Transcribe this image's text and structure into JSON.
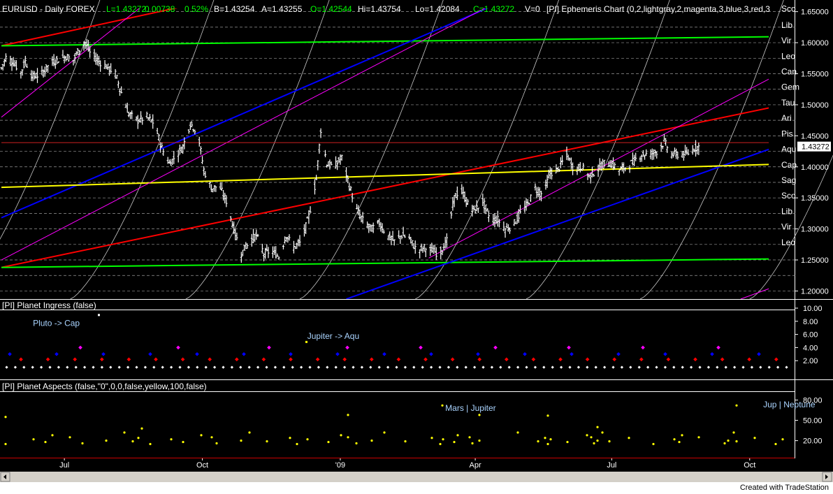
{
  "header": {
    "symbol": "EURUSD - Daily  FOREX",
    "last": "L=1.43272",
    "change": "0.00738",
    "change_pct": "0.52%",
    "bid": "B=1.43254",
    "ask": "A=1.43255",
    "open": "O=1.42544",
    "high": "Hi=1.43754",
    "low": "Lo=1.42084",
    "close": "C=1.43272",
    "volume": "V=0",
    "indicator": "[PI] Ephemeris Chart (0,2,lightgray,2,magenta,3,blue,3,red,3"
  },
  "price_panel": {
    "last_price_label": "1.43272",
    "y_ticks": [
      "1.65000",
      "1.60000",
      "1.55000",
      "1.50000",
      "1.45000",
      "1.40000",
      "1.35000",
      "1.30000",
      "1.25000",
      "1.20000"
    ],
    "zodiac_labels": [
      {
        "text": "Sco",
        "price": 1.656
      },
      {
        "text": "Lib",
        "price": 1.6295
      },
      {
        "text": "Vir",
        "price": 1.6045
      },
      {
        "text": "Leo",
        "price": 1.5795
      },
      {
        "text": "Can",
        "price": 1.5545
      },
      {
        "text": "Gem",
        "price": 1.5295
      },
      {
        "text": "Tau",
        "price": 1.5045
      },
      {
        "text": "Ari",
        "price": 1.4795
      },
      {
        "text": "Pis",
        "price": 1.4545
      },
      {
        "text": "Aqu",
        "price": 1.4295
      },
      {
        "text": "Cap",
        "price": 1.4045
      },
      {
        "text": "Sag",
        "price": 1.3795
      },
      {
        "text": "Sco",
        "price": 1.3545
      },
      {
        "text": "Lib",
        "price": 1.3295
      },
      {
        "text": "Vir",
        "price": 1.3045
      },
      {
        "text": "Leo",
        "price": 1.2795
      }
    ]
  },
  "ingress_panel": {
    "title": "[PI] Planet Ingress (false)",
    "y_ticks": [
      "10.00",
      "8.00",
      "6.00",
      "4.00",
      "2.00"
    ],
    "annotations": [
      {
        "text": "Pluto  -> Cap",
        "x_date": "2008-06-10",
        "level": 7.3
      },
      {
        "text": "Jupiter -> Aqu",
        "x_date": "2008-12-10",
        "level": 5.3
      }
    ]
  },
  "aspects_panel": {
    "title": "[PI] Planet Aspects (false,\"0\",0,0,false,yellow,100,false)",
    "y_ticks": [
      "80.00",
      "50.00",
      "20.00"
    ],
    "annotations": [
      {
        "text": "Mars | Jupiter",
        "x_date": "2009-03-12",
        "level": 64
      },
      {
        "text": "Jup | Neptune",
        "x_date": "2009-10-10",
        "level": 69
      }
    ]
  },
  "x_axis": {
    "labels": [
      {
        "text": "Jul",
        "date": "2008-07-01"
      },
      {
        "text": "Oct",
        "date": "2008-10-01"
      },
      {
        "text": "'09",
        "date": "2009-01-01"
      },
      {
        "text": "Apr",
        "date": "2009-04-01"
      },
      {
        "text": "Jul",
        "date": "2009-07-01"
      },
      {
        "text": "Oct",
        "date": "2009-10-01"
      }
    ]
  },
  "footer": {
    "credit": "Created with TradeStation"
  },
  "colors": {
    "background": "#000000",
    "bars": "#ffffff",
    "up_text": "#00ff00",
    "axis_text": "#ffffff",
    "ingress_red": "#ff0000",
    "ingress_blue": "#0000ff",
    "ingress_magenta": "#ff00ff",
    "ingress_white": "#ffffff",
    "aspect_dots": "#ffff00",
    "annotation_text": "#aad4ff"
  },
  "chart_data": {
    "type": "bar",
    "subtype": "ohlc",
    "title": "EURUSD - Daily  FOREX",
    "x_range": [
      "2008-05-20",
      "2009-10-30"
    ],
    "y_range": [
      1.187,
      1.662
    ],
    "grid": true,
    "series": [
      {
        "name": "price",
        "points": [
          [
            "2008-05-20",
            1.559
          ],
          [
            "2008-05-23",
            1.576
          ],
          [
            "2008-05-28",
            1.568
          ],
          [
            "2008-06-02",
            1.552
          ],
          [
            "2008-06-05",
            1.57
          ],
          [
            "2008-06-10",
            1.545
          ],
          [
            "2008-06-16",
            1.55
          ],
          [
            "2008-06-21",
            1.565
          ],
          [
            "2008-06-26",
            1.572
          ],
          [
            "2008-07-02",
            1.578
          ],
          [
            "2008-07-07",
            1.572
          ],
          [
            "2008-07-11",
            1.59
          ],
          [
            "2008-07-15",
            1.6
          ],
          [
            "2008-07-18",
            1.585
          ],
          [
            "2008-07-24",
            1.57
          ],
          [
            "2008-07-30",
            1.56
          ],
          [
            "2008-08-04",
            1.55
          ],
          [
            "2008-08-08",
            1.52
          ],
          [
            "2008-08-13",
            1.485
          ],
          [
            "2008-08-19",
            1.475
          ],
          [
            "2008-08-25",
            1.48
          ],
          [
            "2008-08-30",
            1.47
          ],
          [
            "2008-09-04",
            1.43
          ],
          [
            "2008-09-09",
            1.405
          ],
          [
            "2008-09-14",
            1.42
          ],
          [
            "2008-09-18",
            1.432
          ],
          [
            "2008-09-23",
            1.47
          ],
          [
            "2008-09-28",
            1.455
          ],
          [
            "2008-10-02",
            1.395
          ],
          [
            "2008-10-07",
            1.365
          ],
          [
            "2008-10-12",
            1.37
          ],
          [
            "2008-10-17",
            1.345
          ],
          [
            "2008-10-22",
            1.3
          ],
          [
            "2008-10-27",
            1.26
          ],
          [
            "2008-11-01",
            1.28
          ],
          [
            "2008-11-06",
            1.29
          ],
          [
            "2008-11-11",
            1.26
          ],
          [
            "2008-11-16",
            1.265
          ],
          [
            "2008-11-21",
            1.255
          ],
          [
            "2008-11-26",
            1.29
          ],
          [
            "2008-12-01",
            1.27
          ],
          [
            "2008-12-06",
            1.28
          ],
          [
            "2008-12-11",
            1.32
          ],
          [
            "2008-12-16",
            1.38
          ],
          [
            "2008-12-19",
            1.46
          ],
          [
            "2008-12-23",
            1.405
          ],
          [
            "2008-12-28",
            1.4
          ],
          [
            "2009-01-02",
            1.415
          ],
          [
            "2009-01-07",
            1.37
          ],
          [
            "2009-01-12",
            1.33
          ],
          [
            "2009-01-17",
            1.31
          ],
          [
            "2009-01-22",
            1.3
          ],
          [
            "2009-01-27",
            1.31
          ],
          [
            "2009-02-01",
            1.29
          ],
          [
            "2009-02-06",
            1.28
          ],
          [
            "2009-02-11",
            1.29
          ],
          [
            "2009-02-16",
            1.285
          ],
          [
            "2009-02-21",
            1.265
          ],
          [
            "2009-02-26",
            1.27
          ],
          [
            "2009-03-03",
            1.265
          ],
          [
            "2009-03-08",
            1.26
          ],
          [
            "2009-03-13",
            1.28
          ],
          [
            "2009-03-18",
            1.35
          ],
          [
            "2009-03-22",
            1.365
          ],
          [
            "2009-03-27",
            1.34
          ],
          [
            "2009-04-01",
            1.33
          ],
          [
            "2009-04-06",
            1.345
          ],
          [
            "2009-04-11",
            1.315
          ],
          [
            "2009-04-16",
            1.315
          ],
          [
            "2009-04-21",
            1.3
          ],
          [
            "2009-04-26",
            1.305
          ],
          [
            "2009-05-01",
            1.325
          ],
          [
            "2009-05-06",
            1.34
          ],
          [
            "2009-05-11",
            1.365
          ],
          [
            "2009-05-16",
            1.355
          ],
          [
            "2009-05-21",
            1.39
          ],
          [
            "2009-05-26",
            1.395
          ],
          [
            "2009-06-01",
            1.42
          ],
          [
            "2009-06-06",
            1.395
          ],
          [
            "2009-06-11",
            1.4
          ],
          [
            "2009-06-16",
            1.385
          ],
          [
            "2009-06-21",
            1.395
          ],
          [
            "2009-06-26",
            1.405
          ],
          [
            "2009-07-01",
            1.405
          ],
          [
            "2009-07-06",
            1.395
          ],
          [
            "2009-07-11",
            1.4
          ],
          [
            "2009-07-16",
            1.41
          ],
          [
            "2009-07-21",
            1.42
          ],
          [
            "2009-07-26",
            1.42
          ],
          [
            "2009-07-31",
            1.425
          ],
          [
            "2009-08-05",
            1.44
          ],
          [
            "2009-08-10",
            1.42
          ],
          [
            "2009-08-15",
            1.42
          ],
          [
            "2009-08-20",
            1.42
          ],
          [
            "2009-08-25",
            1.43
          ],
          [
            "2009-08-28",
            1.4327
          ]
        ]
      }
    ],
    "overlay_lines": [
      {
        "color": "#ff0000",
        "x0": "2008-05-20",
        "y0": 1.595,
        "x1": "2008-10-01",
        "y1": 1.665
      },
      {
        "color": "#00ff00",
        "x0": "2008-05-20",
        "y0": 1.595,
        "x1": "2009-10-30",
        "y1": 1.61
      },
      {
        "color": "#ff0000",
        "x0": "2008-05-20",
        "y0": 1.238,
        "x1": "2009-10-30",
        "y1": 1.503
      },
      {
        "color": "#00ff00",
        "x0": "2008-05-20",
        "y0": 1.238,
        "x1": "2009-10-30",
        "y1": 1.252
      },
      {
        "color": "#0000ff",
        "x0": "2008-05-20",
        "y0": 1.318,
        "x1": "2009-04-18",
        "y1": 1.665
      },
      {
        "color": "#0000ff",
        "x0": "2009-01-05",
        "y0": 1.187,
        "x1": "2009-10-30",
        "y1": 1.442
      },
      {
        "color": "#ffff00",
        "x0": "2008-05-20",
        "y0": 1.367,
        "x1": "2009-10-30",
        "y1": 1.405
      },
      {
        "color": "#ff00ff",
        "x0": "2008-05-20",
        "y0": 1.48,
        "x1": "2008-08-25",
        "y1": 1.665
      },
      {
        "color": "#ff00ff",
        "x0": "2008-05-20",
        "y0": 1.25,
        "x1": "2009-04-15",
        "y1": 1.665
      },
      {
        "color": "#ff00ff",
        "x0": "2009-03-01",
        "y0": 1.253,
        "x1": "2009-10-30",
        "y1": 1.562
      },
      {
        "color": "#ff00ff",
        "x0": "2009-09-25",
        "y0": 1.187,
        "x1": "2009-10-30",
        "y1": 1.218
      },
      {
        "color": "#cc2222",
        "x0": "2008-05-20",
        "y0": 1.439,
        "x1": "2009-10-30",
        "y1": 1.439
      }
    ]
  }
}
